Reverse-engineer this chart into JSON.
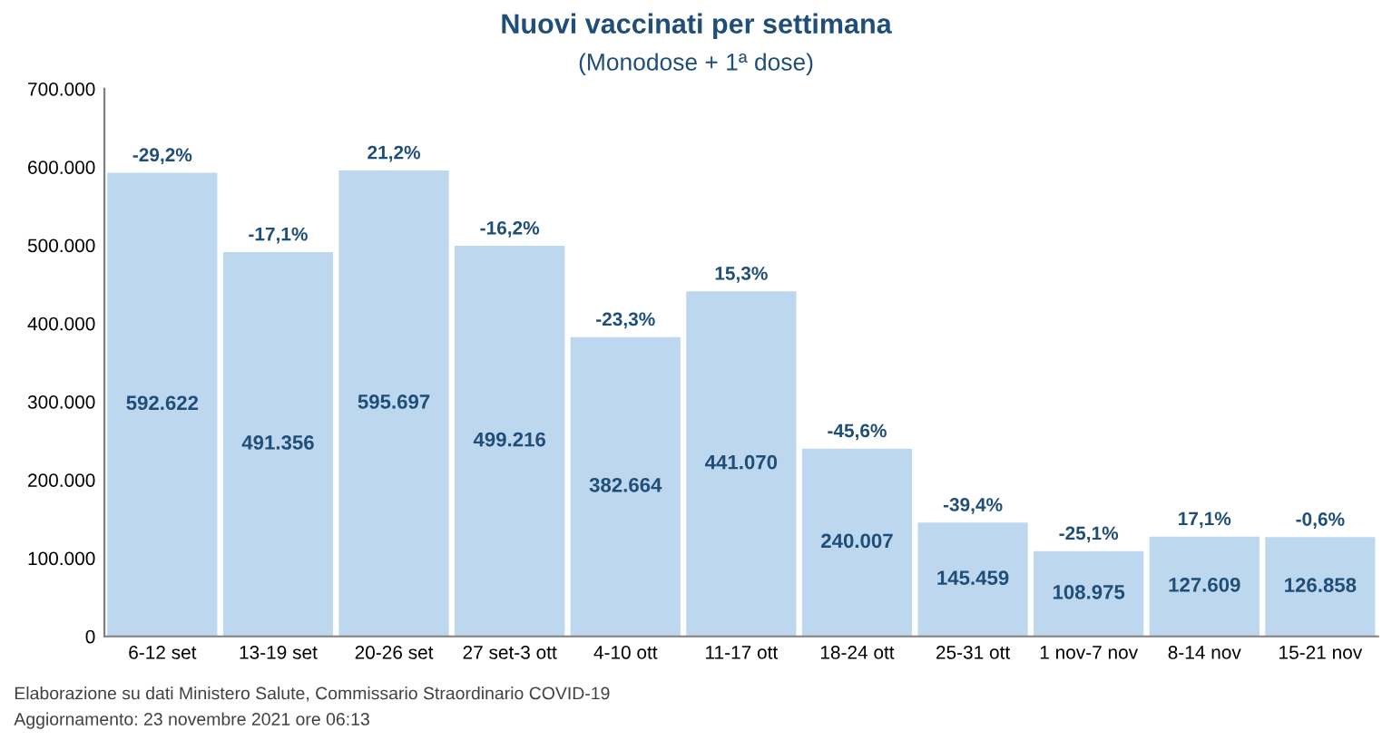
{
  "chart_data": {
    "type": "bar",
    "title": "Nuovi vaccinati per settimana",
    "subtitle": "(Monodose + 1ª dose)",
    "categories": [
      "6-12 set",
      "13-19 set",
      "20-26 set",
      "27 set-3 ott",
      "4-10 ott",
      "11-17 ott",
      "18-24 ott",
      "25-31 ott",
      "1 nov-7 nov",
      "8-14 nov",
      "15-21 nov"
    ],
    "values": [
      592622,
      491356,
      595697,
      499216,
      382664,
      441070,
      240007,
      145459,
      108975,
      127609,
      126858
    ],
    "color": "#bdd7ee",
    "grid": false,
    "value_labels": [
      "592.622",
      "491.356",
      "595.697",
      "499.216",
      "382.664",
      "441.070",
      "240.007",
      "145.459",
      "108.975",
      "127.609",
      "126.858"
    ],
    "ylim": [
      0,
      700000
    ],
    "yticks": [
      0,
      {
        "value": 100000,
        "label": "100.000"
      },
      {
        "value": 200000,
        "label": "200.000"
      },
      {
        "value": 300000,
        "label": "300.000"
      },
      {
        "value": 400000,
        "label": "400.000"
      },
      {
        "value": 500000,
        "label": "500.000"
      },
      {
        "value": 600000,
        "label": "600.000"
      },
      {
        "value": 700000,
        "label": "700.000"
      }
    ],
    "annotations": [
      {
        "text": "-29,2%",
        "x": "6-12 set",
        "y": 592622
      },
      {
        "text": "-17,1%",
        "x": "13-19 set",
        "y": 491356
      },
      {
        "text": "21,2%",
        "x": "20-26 set",
        "y": 595697
      },
      {
        "text": "-16,2%",
        "x": "27 set-3 ott",
        "y": 499216
      },
      {
        "text": "-23,3%",
        "x": "4-10 ott",
        "y": 382664
      },
      {
        "text": "15,3%",
        "x": "11-17 ott",
        "y": 441070
      },
      {
        "text": "-45,6%",
        "x": "18-24 ott",
        "y": 240007
      },
      {
        "text": "-39,4%",
        "x": "25-31 ott",
        "y": 145459
      },
      {
        "text": "-25,1%",
        "x": "1 nov-7 nov",
        "y": 108975
      },
      {
        "text": "17,1%",
        "x": "8-14 nov",
        "y": 127609
      },
      {
        "text": "-0,6%",
        "x": "15-21 nov",
        "y": 126858
      },
      "Elaborazione su dati Ministero Salute, Commissario Straordinario COVID-19",
      "Aggiornamento: 23 novembre 2021 ore 06:13"
    ]
  }
}
